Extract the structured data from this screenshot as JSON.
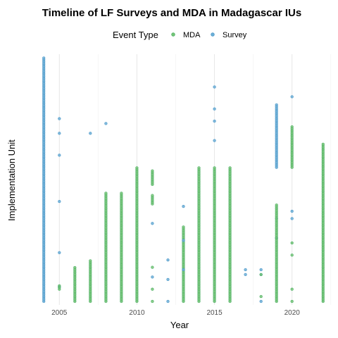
{
  "chart_data": {
    "type": "scatter",
    "title": "Timeline of LF Surveys and MDA in Madagascar IUs",
    "xlabel": "Year",
    "ylabel": "Implementation Unit",
    "xlim": [
      2002.9,
      2022.6
    ],
    "ylim": [
      0,
      100
    ],
    "x_ticks": [
      2005,
      2010,
      2015,
      2020
    ],
    "y_ticks": [],
    "grid": true,
    "legend": {
      "title": "Event Type",
      "position": "top"
    },
    "series": [
      {
        "name": "MDA",
        "color": "#74c476",
        "stroke": "#41ab5d"
      },
      {
        "name": "Survey",
        "color": "#6baed6",
        "stroke": "#4292c6"
      }
    ],
    "points": [
      {
        "year": 2004,
        "type": "Survey",
        "ranges": [
          [
            0,
            100
          ]
        ],
        "singles": []
      },
      {
        "year": 2005,
        "type": "Survey",
        "ranges": [],
        "singles": [
          75,
          69,
          60,
          41,
          20,
          6
        ]
      },
      {
        "year": 2005,
        "type": "MDA",
        "ranges": [
          [
            5,
            7
          ]
        ],
        "singles": []
      },
      {
        "year": 2006,
        "type": "MDA",
        "ranges": [
          [
            0,
            14
          ]
        ],
        "singles": []
      },
      {
        "year": 2007,
        "type": "MDA",
        "ranges": [
          [
            0,
            17
          ]
        ],
        "singles": []
      },
      {
        "year": 2007,
        "type": "Survey",
        "ranges": [],
        "singles": [
          69
        ]
      },
      {
        "year": 2008,
        "type": "Survey",
        "ranges": [],
        "singles": [
          73
        ]
      },
      {
        "year": 2008,
        "type": "MDA",
        "ranges": [
          [
            0,
            45
          ]
        ],
        "singles": []
      },
      {
        "year": 2009,
        "type": "MDA",
        "ranges": [
          [
            0,
            45
          ]
        ],
        "singles": []
      },
      {
        "year": 2010,
        "type": "MDA",
        "ranges": [
          [
            0,
            55
          ]
        ],
        "singles": []
      },
      {
        "year": 2011,
        "type": "MDA",
        "ranges": [
          [
            48,
            54
          ],
          [
            40,
            44
          ]
        ],
        "singles": [
          0,
          5,
          14
        ]
      },
      {
        "year": 2011,
        "type": "Survey",
        "ranges": [],
        "singles": [
          32,
          10
        ]
      },
      {
        "year": 2012,
        "type": "Survey",
        "ranges": [],
        "singles": [
          17,
          9,
          0
        ]
      },
      {
        "year": 2013,
        "type": "MDA",
        "ranges": [
          [
            0,
            31
          ]
        ],
        "singles": []
      },
      {
        "year": 2013,
        "type": "Survey",
        "ranges": [],
        "singles": [
          39,
          25,
          13
        ]
      },
      {
        "year": 2014,
        "type": "MDA",
        "ranges": [
          [
            0,
            55
          ]
        ],
        "singles": []
      },
      {
        "year": 2015,
        "type": "MDA",
        "ranges": [
          [
            0,
            55
          ]
        ],
        "singles": []
      },
      {
        "year": 2015,
        "type": "Survey",
        "ranges": [],
        "singles": [
          88,
          79,
          74,
          66
        ]
      },
      {
        "year": 2016,
        "type": "MDA",
        "ranges": [
          [
            0,
            55
          ]
        ],
        "singles": []
      },
      {
        "year": 2017,
        "type": "Survey",
        "ranges": [],
        "singles": [
          13,
          11
        ]
      },
      {
        "year": 2018,
        "type": "Survey",
        "ranges": [],
        "singles": [
          13,
          11,
          0
        ]
      },
      {
        "year": 2018,
        "type": "MDA",
        "ranges": [],
        "singles": [
          11,
          2
        ]
      },
      {
        "year": 2019,
        "type": "Survey",
        "ranges": [
          [
            55,
            81
          ]
        ],
        "singles": [
          34,
          26
        ]
      },
      {
        "year": 2019,
        "type": "MDA",
        "ranges": [
          [
            0,
            40
          ]
        ],
        "singles": []
      },
      {
        "year": 2020,
        "type": "Survey",
        "ranges": [],
        "singles": [
          84,
          37,
          34
        ]
      },
      {
        "year": 2020,
        "type": "MDA",
        "ranges": [
          [
            55,
            72
          ]
        ],
        "singles": [
          24,
          19,
          5,
          0
        ]
      },
      {
        "year": 2022,
        "type": "MDA",
        "ranges": [
          [
            0,
            65
          ]
        ],
        "singles": []
      }
    ]
  }
}
